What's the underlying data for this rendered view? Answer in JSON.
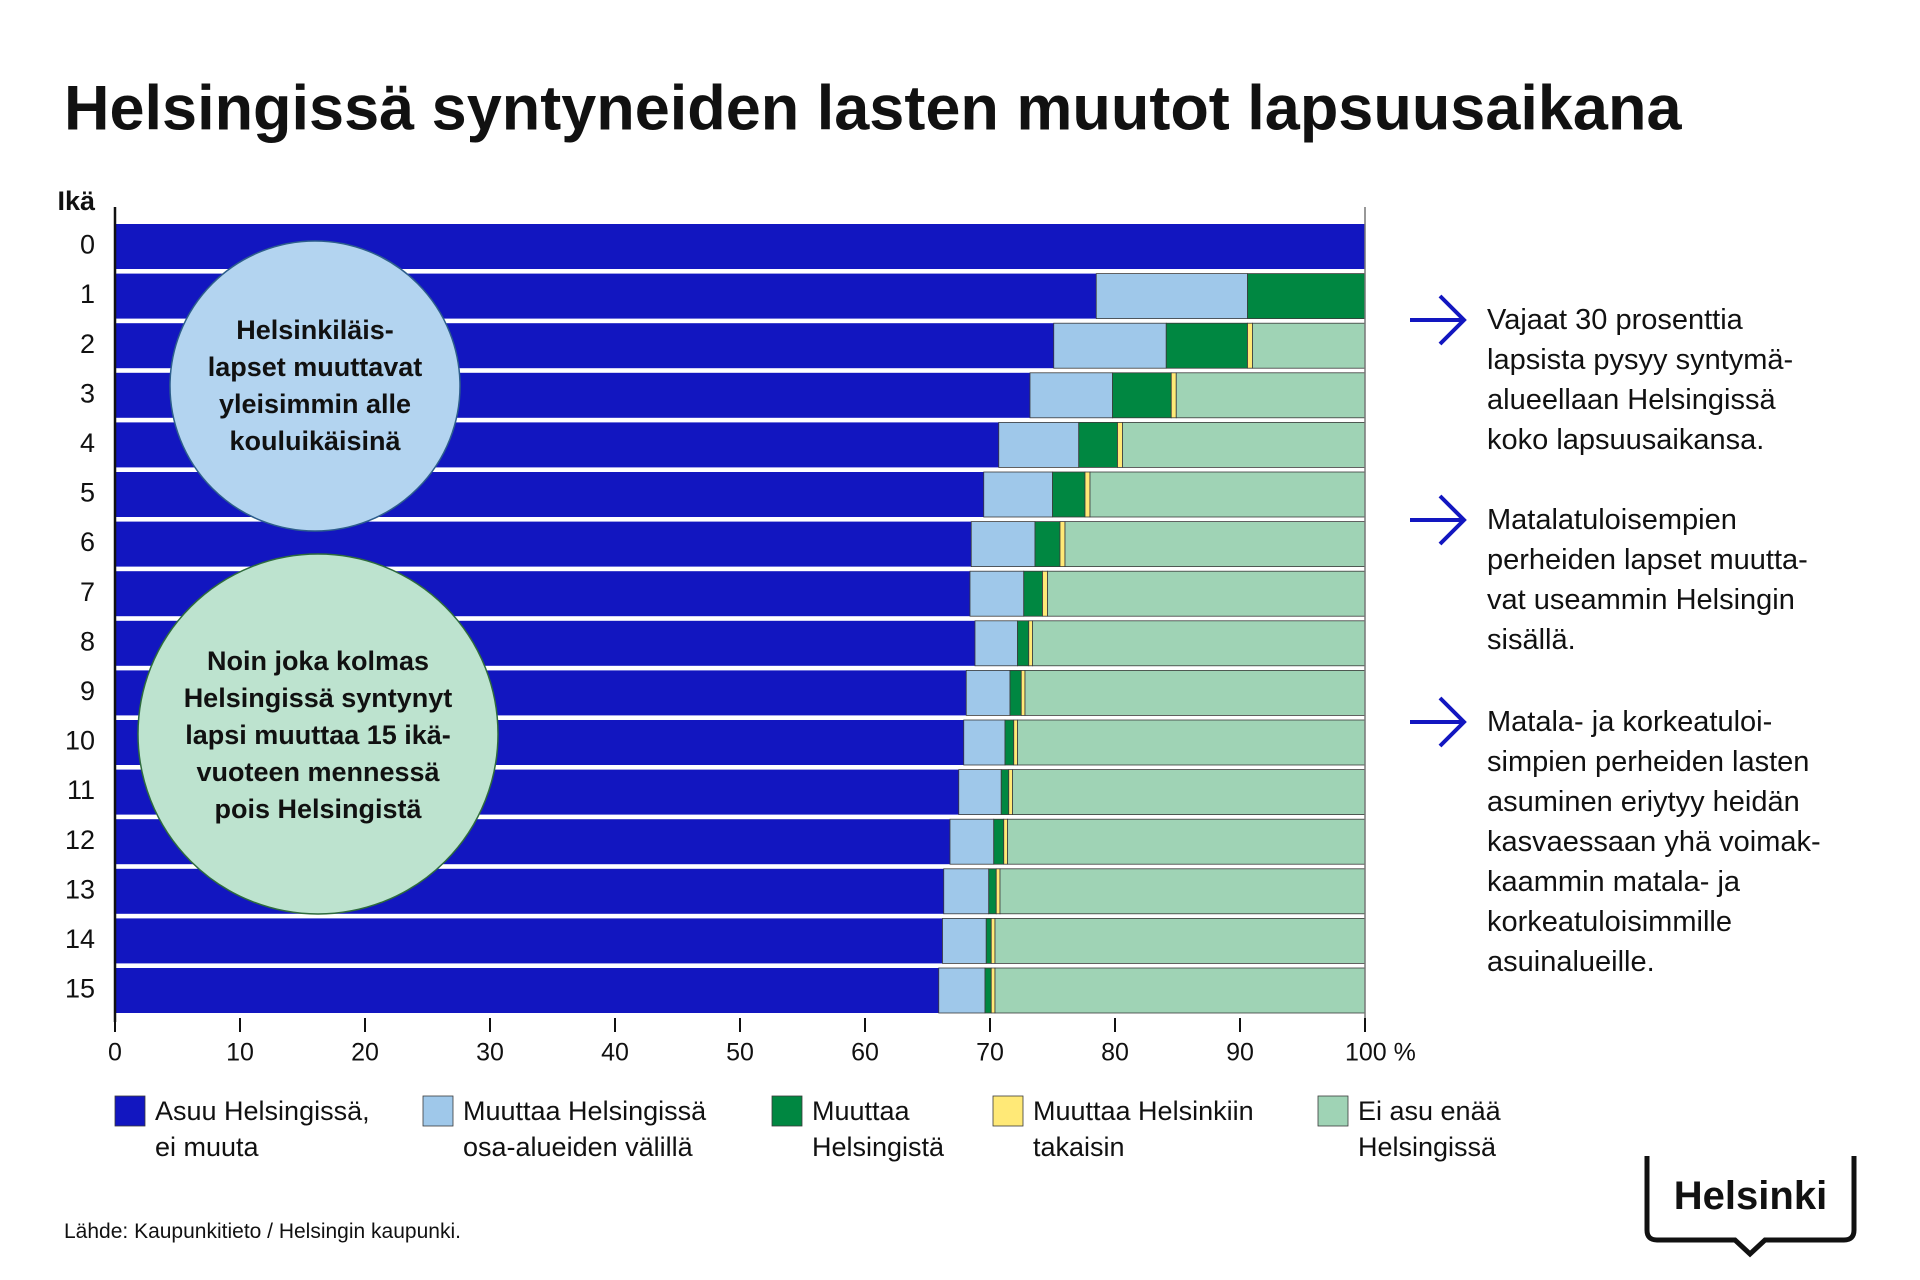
{
  "chart_data": {
    "type": "bar",
    "orientation": "horizontal",
    "stacked": true,
    "title": "Helsingissä syntyneiden lasten muutot lapsuusaikana",
    "y_label": "Ikä",
    "categories": [
      "0",
      "1",
      "2",
      "3",
      "4",
      "5",
      "6",
      "7",
      "8",
      "9",
      "10",
      "11",
      "12",
      "13",
      "14",
      "15"
    ],
    "series": [
      {
        "name": "Asuu Helsingissä,\nei muuta",
        "color": "#1216c0",
        "values": [
          100,
          78.5,
          75.1,
          73.2,
          70.7,
          69.5,
          68.5,
          68.4,
          68.8,
          68.1,
          67.9,
          67.5,
          66.8,
          66.3,
          66.2,
          65.9
        ]
      },
      {
        "name": "Muuttaa Helsingissä\nosa-alueiden välillä",
        "color": "#9fc8ea",
        "values": [
          0,
          12.1,
          9.0,
          6.6,
          6.4,
          5.5,
          5.1,
          4.3,
          3.4,
          3.5,
          3.3,
          3.4,
          3.5,
          3.6,
          3.5,
          3.7
        ]
      },
      {
        "name": "Muuttaa\nHelsingistä",
        "color": "#008741",
        "values": [
          0,
          9.4,
          6.5,
          4.7,
          3.1,
          2.6,
          2.0,
          1.5,
          0.9,
          0.9,
          0.7,
          0.6,
          0.8,
          0.6,
          0.4,
          0.5
        ]
      },
      {
        "name": "Muuttaa Helsinkiin\ntakaisin",
        "color": "#ffe977",
        "values": [
          0,
          0,
          0.4,
          0.4,
          0.4,
          0.4,
          0.4,
          0.4,
          0.3,
          0.3,
          0.3,
          0.3,
          0.3,
          0.3,
          0.3,
          0.3
        ]
      },
      {
        "name": "Ei asu enää\nHelsingissä",
        "color": "#9fd3b5",
        "values": [
          0,
          0,
          9.0,
          15.1,
          19.4,
          22.0,
          24.0,
          25.4,
          26.6,
          27.2,
          27.8,
          28.2,
          28.6,
          29.2,
          29.6,
          29.6
        ]
      }
    ],
    "xlim": [
      0,
      100
    ],
    "xticks": [
      0,
      10,
      20,
      30,
      40,
      50,
      60,
      70,
      80,
      90,
      {
        "value": 100,
        "label": "100 %"
      }
    ],
    "annotations": [
      "Helsinkiläis-\nlapset muuttavat\nyleisimmin alle\nkouluikäisinä",
      "Noin joka kolmas\nHelsingissä syntynyt\nlapsi muuttaa 15 ikä-\nvuoteen mennessä\npois Helsingistä"
    ],
    "notes": [
      "Vajaat 30 prosenttia\nlapsista pysyy syntymä-\nalueellaan Helsingissä\nkoko lapsuusaikansa.",
      "Matalatuloisempien\nperheiden lapset muutta-\nvat useammin Helsingin\nsisällä.",
      "Matala- ja korkeatuloi-\nsimpien perheiden lasten\nasuminen eriytyy heidän\nkasvaessaan yhä voimak-\nkaammin matala- ja\nkorkeatuloisimmille\nasuinalueille."
    ]
  },
  "source": "Lähde: Kaupunkitieto / Helsingin kaupunki.",
  "logo": "Helsinki"
}
